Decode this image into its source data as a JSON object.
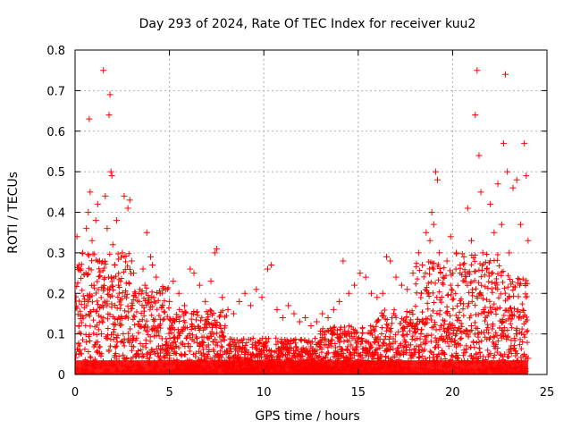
{
  "chart_data": {
    "type": "scatter",
    "title": "Day 293 of 2024, Rate Of TEC Index for receiver kuu2",
    "xlabel": "GPS time / hours",
    "ylabel": "ROTI / TECUs",
    "xlim": [
      0,
      25
    ],
    "ylim": [
      0,
      0.8
    ],
    "xticks": [
      0,
      5,
      10,
      15,
      20,
      25
    ],
    "xtick_labels": [
      "0",
      "5",
      "10",
      "15",
      "20",
      "25"
    ],
    "yticks": [
      0,
      0.1,
      0.2,
      0.3,
      0.4,
      0.5,
      0.6,
      0.7,
      0.8
    ],
    "ytick_labels": [
      "0",
      "0.1",
      "0.2",
      "0.3",
      "0.4",
      "0.5",
      "0.6",
      "0.7",
      "0.8"
    ],
    "grid": true,
    "marker": "+",
    "color": "#ff0000",
    "series": [
      {
        "points": [
          [
            0.1,
            0.34
          ],
          [
            0.2,
            0.12
          ],
          [
            0.3,
            0.26
          ],
          [
            0.4,
            0.3
          ],
          [
            0.5,
            0.18
          ],
          [
            0.6,
            0.36
          ],
          [
            0.7,
            0.4
          ],
          [
            0.75,
            0.63
          ],
          [
            0.8,
            0.45
          ],
          [
            0.9,
            0.33
          ],
          [
            1.0,
            0.22
          ],
          [
            1.1,
            0.38
          ],
          [
            1.2,
            0.42
          ],
          [
            1.3,
            0.28
          ],
          [
            1.5,
            0.75
          ],
          [
            1.6,
            0.44
          ],
          [
            1.7,
            0.36
          ],
          [
            1.8,
            0.64
          ],
          [
            1.85,
            0.69
          ],
          [
            1.9,
            0.5
          ],
          [
            1.95,
            0.49
          ],
          [
            2.0,
            0.32
          ],
          [
            2.1,
            0.27
          ],
          [
            2.2,
            0.38
          ],
          [
            2.3,
            0.22
          ],
          [
            2.5,
            0.3
          ],
          [
            2.6,
            0.44
          ],
          [
            2.8,
            0.41
          ],
          [
            2.9,
            0.43
          ],
          [
            3.0,
            0.28
          ],
          [
            3.1,
            0.25
          ],
          [
            3.2,
            0.2
          ],
          [
            3.4,
            0.18
          ],
          [
            3.6,
            0.26
          ],
          [
            3.7,
            0.22
          ],
          [
            3.8,
            0.35
          ],
          [
            4.0,
            0.29
          ],
          [
            4.1,
            0.27
          ],
          [
            4.3,
            0.24
          ],
          [
            4.5,
            0.2
          ],
          [
            4.8,
            0.21
          ],
          [
            5.0,
            0.18
          ],
          [
            5.2,
            0.23
          ],
          [
            5.5,
            0.2
          ],
          [
            5.8,
            0.17
          ],
          [
            6.1,
            0.26
          ],
          [
            6.3,
            0.25
          ],
          [
            6.6,
            0.22
          ],
          [
            6.9,
            0.18
          ],
          [
            7.2,
            0.23
          ],
          [
            7.4,
            0.3
          ],
          [
            7.5,
            0.31
          ],
          [
            7.8,
            0.19
          ],
          [
            8.1,
            0.16
          ],
          [
            8.4,
            0.15
          ],
          [
            8.7,
            0.18
          ],
          [
            9.0,
            0.2
          ],
          [
            9.3,
            0.17
          ],
          [
            9.6,
            0.21
          ],
          [
            9.9,
            0.19
          ],
          [
            10.2,
            0.26
          ],
          [
            10.4,
            0.27
          ],
          [
            10.7,
            0.16
          ],
          [
            11.0,
            0.14
          ],
          [
            11.3,
            0.17
          ],
          [
            11.6,
            0.15
          ],
          [
            11.9,
            0.13
          ],
          [
            12.2,
            0.14
          ],
          [
            12.5,
            0.12
          ],
          [
            12.8,
            0.13
          ],
          [
            13.1,
            0.15
          ],
          [
            13.4,
            0.14
          ],
          [
            13.7,
            0.16
          ],
          [
            14.0,
            0.18
          ],
          [
            14.2,
            0.28
          ],
          [
            14.5,
            0.2
          ],
          [
            14.8,
            0.22
          ],
          [
            15.1,
            0.25
          ],
          [
            15.4,
            0.24
          ],
          [
            15.7,
            0.2
          ],
          [
            16.0,
            0.19
          ],
          [
            16.3,
            0.2
          ],
          [
            16.5,
            0.29
          ],
          [
            16.7,
            0.28
          ],
          [
            17.0,
            0.24
          ],
          [
            17.3,
            0.22
          ],
          [
            17.6,
            0.21
          ],
          [
            17.9,
            0.25
          ],
          [
            18.2,
            0.3
          ],
          [
            18.4,
            0.27
          ],
          [
            18.6,
            0.35
          ],
          [
            18.8,
            0.33
          ],
          [
            18.9,
            0.4
          ],
          [
            19.0,
            0.37
          ],
          [
            19.1,
            0.5
          ],
          [
            19.2,
            0.48
          ],
          [
            19.3,
            0.3
          ],
          [
            19.5,
            0.24
          ],
          [
            19.7,
            0.28
          ],
          [
            19.9,
            0.34
          ],
          [
            20.0,
            0.25
          ],
          [
            20.2,
            0.3
          ],
          [
            20.4,
            0.27
          ],
          [
            20.6,
            0.29
          ],
          [
            20.8,
            0.41
          ],
          [
            21.0,
            0.33
          ],
          [
            21.2,
            0.64
          ],
          [
            21.3,
            0.75
          ],
          [
            21.4,
            0.54
          ],
          [
            21.5,
            0.45
          ],
          [
            21.6,
            0.3
          ],
          [
            21.8,
            0.26
          ],
          [
            22.0,
            0.42
          ],
          [
            22.2,
            0.35
          ],
          [
            22.4,
            0.47
          ],
          [
            22.6,
            0.37
          ],
          [
            22.7,
            0.57
          ],
          [
            22.8,
            0.74
          ],
          [
            22.9,
            0.5
          ],
          [
            23.0,
            0.3
          ],
          [
            23.2,
            0.46
          ],
          [
            23.4,
            0.48
          ],
          [
            23.6,
            0.37
          ],
          [
            23.8,
            0.57
          ],
          [
            23.9,
            0.49
          ],
          [
            24.0,
            0.33
          ],
          [
            0.2,
            0.05
          ],
          [
            0.6,
            0.08
          ],
          [
            1.0,
            0.03
          ],
          [
            1.4,
            0.1
          ],
          [
            1.8,
            0.06
          ],
          [
            2.2,
            0.09
          ],
          [
            2.6,
            0.04
          ],
          [
            3.0,
            0.07
          ],
          [
            3.4,
            0.02
          ],
          [
            3.8,
            0.05
          ],
          [
            4.2,
            0.03
          ],
          [
            4.6,
            0.06
          ],
          [
            5.0,
            0.04
          ],
          [
            5.4,
            0.02
          ],
          [
            5.8,
            0.05
          ],
          [
            6.2,
            0.03
          ],
          [
            6.6,
            0.02
          ],
          [
            7.0,
            0.04
          ],
          [
            7.4,
            0.01
          ],
          [
            7.8,
            0.03
          ],
          [
            8.2,
            0.02
          ],
          [
            8.6,
            0.04
          ],
          [
            9.0,
            0.01
          ],
          [
            9.4,
            0.02
          ],
          [
            9.8,
            0.03
          ],
          [
            10.2,
            0.01
          ],
          [
            10.6,
            0.02
          ],
          [
            11.0,
            0.01
          ],
          [
            11.4,
            0.02
          ],
          [
            11.8,
            0.01
          ],
          [
            12.2,
            0.02
          ],
          [
            12.6,
            0.01
          ],
          [
            13.0,
            0.02
          ],
          [
            13.4,
            0.01
          ],
          [
            13.8,
            0.03
          ],
          [
            14.2,
            0.02
          ],
          [
            14.6,
            0.04
          ],
          [
            15.0,
            0.02
          ],
          [
            15.4,
            0.03
          ],
          [
            15.8,
            0.05
          ],
          [
            16.2,
            0.02
          ],
          [
            16.6,
            0.04
          ],
          [
            17.0,
            0.03
          ],
          [
            17.4,
            0.05
          ],
          [
            17.8,
            0.04
          ],
          [
            18.2,
            0.06
          ],
          [
            18.6,
            0.08
          ],
          [
            19.0,
            0.05
          ],
          [
            19.4,
            0.09
          ],
          [
            19.8,
            0.07
          ],
          [
            20.2,
            0.1
          ],
          [
            20.6,
            0.06
          ],
          [
            21.0,
            0.12
          ],
          [
            21.4,
            0.08
          ],
          [
            21.8,
            0.11
          ],
          [
            22.2,
            0.07
          ],
          [
            22.6,
            0.09
          ],
          [
            23.0,
            0.06
          ],
          [
            23.4,
            0.1
          ],
          [
            23.8,
            0.05
          ],
          [
            24.0,
            0.04
          ]
        ]
      }
    ]
  }
}
